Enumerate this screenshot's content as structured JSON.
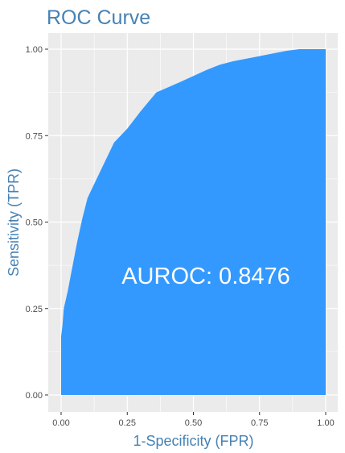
{
  "chart_data": {
    "type": "area",
    "title": "ROC Curve",
    "xlabel": "1-Specificity (FPR)",
    "ylabel": "Sensitivity (TPR)",
    "xlim": [
      0,
      1
    ],
    "ylim": [
      0,
      1
    ],
    "x_ticks": [
      0,
      0.25,
      0.5,
      0.75,
      1
    ],
    "x_tick_labels": [
      "0.00",
      "0.25",
      "0.50",
      "0.75",
      "1.00"
    ],
    "y_ticks": [
      0,
      0.25,
      0.5,
      0.75,
      1
    ],
    "y_tick_labels": [
      "0.00",
      "0.25",
      "0.50",
      "0.75",
      "1.00"
    ],
    "grid": true,
    "annotation": "AUROC: 0.8476",
    "points": [
      {
        "x": 0.0,
        "y": 0.0
      },
      {
        "x": 0.0,
        "y": 0.17
      },
      {
        "x": 0.005,
        "y": 0.2
      },
      {
        "x": 0.01,
        "y": 0.25
      },
      {
        "x": 0.025,
        "y": 0.3
      },
      {
        "x": 0.04,
        "y": 0.36
      },
      {
        "x": 0.06,
        "y": 0.44
      },
      {
        "x": 0.08,
        "y": 0.51
      },
      {
        "x": 0.1,
        "y": 0.57
      },
      {
        "x": 0.15,
        "y": 0.65
      },
      {
        "x": 0.2,
        "y": 0.73
      },
      {
        "x": 0.25,
        "y": 0.77
      },
      {
        "x": 0.3,
        "y": 0.82
      },
      {
        "x": 0.36,
        "y": 0.875
      },
      {
        "x": 0.45,
        "y": 0.905
      },
      {
        "x": 0.55,
        "y": 0.94
      },
      {
        "x": 0.6,
        "y": 0.955
      },
      {
        "x": 0.65,
        "y": 0.965
      },
      {
        "x": 0.75,
        "y": 0.98
      },
      {
        "x": 0.85,
        "y": 0.995
      },
      {
        "x": 0.9,
        "y": 1.0
      },
      {
        "x": 1.0,
        "y": 1.0
      }
    ],
    "colors": {
      "fill": "#3399ff",
      "panel": "#ebebeb",
      "grid": "#ffffff",
      "title": "#4682b4",
      "axis_label": "#4682b4",
      "annotation": "#ffffff"
    }
  }
}
